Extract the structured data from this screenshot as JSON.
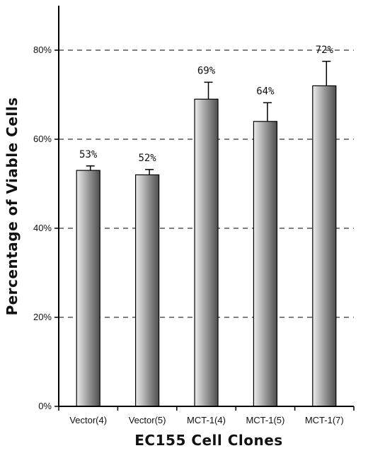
{
  "chart_data": {
    "type": "bar",
    "title": "",
    "xlabel": "EC155  Cell  Clones",
    "ylabel": "Percentage  of  Viable  Cells",
    "categories": [
      "Vector(4)",
      "Vector(5)",
      "MCT-1(4)",
      "MCT-1(5)",
      "MCT-1(7)"
    ],
    "values": [
      53,
      52,
      69,
      64,
      72
    ],
    "error_bars": [
      1,
      1.2,
      3.8,
      4.2,
      5.5
    ],
    "data_labels": [
      "53%",
      "52%",
      "69%",
      "64%",
      "72%"
    ],
    "ylim": [
      0,
      90
    ],
    "yticks": [
      0,
      20,
      40,
      60,
      80
    ],
    "ytick_labels": [
      "0%",
      "20%",
      "40%",
      "60%",
      "80%"
    ],
    "grid": "horizontal dashed",
    "legend": "none",
    "colors": {
      "bar_dark": "#5a5a5a",
      "bar_light": "#e6e6e6",
      "axis": "#000000",
      "grid": "#000000"
    }
  }
}
